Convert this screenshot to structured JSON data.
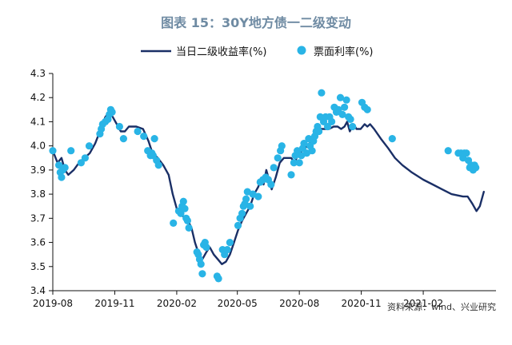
{
  "chart_data": {
    "type": "line",
    "title": "图表 15：30Y地方债一二级变动",
    "source": "资料来源：wind、兴业研究",
    "xlabel": "",
    "ylabel": "",
    "ylim": [
      3.4,
      4.3
    ],
    "yticks": [
      "3.4",
      "3.5",
      "3.6",
      "3.7",
      "3.8",
      "3.9",
      "4.0",
      "4.1",
      "4.2",
      "4.3"
    ],
    "xlim": [
      "2019-08-01",
      "2021-05-20"
    ],
    "xticks": [
      {
        "date": "2019-08-01",
        "label": "2019-08"
      },
      {
        "date": "2019-11-01",
        "label": "2019-11"
      },
      {
        "date": "2020-02-01",
        "label": "2020-02"
      },
      {
        "date": "2020-05-01",
        "label": "2020-05"
      },
      {
        "date": "2020-08-01",
        "label": "2020-08"
      },
      {
        "date": "2020-11-01",
        "label": "2020-11"
      },
      {
        "date": "2021-02-01",
        "label": "2021-02"
      }
    ],
    "grid": false,
    "legend_position": "top",
    "series": [
      {
        "name": "当日二级收益率(%)",
        "kind": "line",
        "color": "#1a2f66",
        "points": [
          [
            "2019-08-01",
            3.98
          ],
          [
            "2019-08-08",
            3.93
          ],
          [
            "2019-08-14",
            3.95
          ],
          [
            "2019-08-19",
            3.9
          ],
          [
            "2019-08-24",
            3.88
          ],
          [
            "2019-09-01",
            3.9
          ],
          [
            "2019-09-09",
            3.93
          ],
          [
            "2019-09-17",
            3.95
          ],
          [
            "2019-09-25",
            3.97
          ],
          [
            "2019-10-03",
            4.01
          ],
          [
            "2019-10-10",
            4.06
          ],
          [
            "2019-10-18",
            4.12
          ],
          [
            "2019-10-24",
            4.14
          ],
          [
            "2019-10-29",
            4.12
          ],
          [
            "2019-11-04",
            4.09
          ],
          [
            "2019-11-10",
            4.06
          ],
          [
            "2019-11-16",
            4.06
          ],
          [
            "2019-11-22",
            4.08
          ],
          [
            "2019-12-03",
            4.08
          ],
          [
            "2019-12-13",
            4.07
          ],
          [
            "2019-12-21",
            4.02
          ],
          [
            "2019-12-27",
            3.97
          ],
          [
            "2020-01-04",
            3.95
          ],
          [
            "2020-01-12",
            3.92
          ],
          [
            "2020-01-20",
            3.88
          ],
          [
            "2020-01-26",
            3.8
          ],
          [
            "2020-02-02",
            3.73
          ],
          [
            "2020-02-09",
            3.71
          ],
          [
            "2020-02-16",
            3.7
          ],
          [
            "2020-02-23",
            3.66
          ],
          [
            "2020-02-28",
            3.6
          ],
          [
            "2020-03-05",
            3.55
          ],
          [
            "2020-03-10",
            3.53
          ],
          [
            "2020-03-16",
            3.56
          ],
          [
            "2020-03-21",
            3.58
          ],
          [
            "2020-03-27",
            3.55
          ],
          [
            "2020-04-02",
            3.53
          ],
          [
            "2020-04-08",
            3.51
          ],
          [
            "2020-04-14",
            3.52
          ],
          [
            "2020-04-20",
            3.55
          ],
          [
            "2020-04-26",
            3.6
          ],
          [
            "2020-05-02",
            3.65
          ],
          [
            "2020-05-08",
            3.69
          ],
          [
            "2020-05-14",
            3.72
          ],
          [
            "2020-05-20",
            3.75
          ],
          [
            "2020-05-26",
            3.8
          ],
          [
            "2020-06-01",
            3.83
          ],
          [
            "2020-06-05",
            3.86
          ],
          [
            "2020-06-09",
            3.84
          ],
          [
            "2020-06-13",
            3.9
          ],
          [
            "2020-06-17",
            3.86
          ],
          [
            "2020-06-21",
            3.82
          ],
          [
            "2020-06-27",
            3.87
          ],
          [
            "2020-07-03",
            3.93
          ],
          [
            "2020-07-09",
            3.95
          ],
          [
            "2020-07-15",
            3.95
          ],
          [
            "2020-07-20",
            3.95
          ],
          [
            "2020-07-25",
            3.93
          ],
          [
            "2020-07-31",
            3.97
          ],
          [
            "2020-08-06",
            3.98
          ],
          [
            "2020-08-13",
            4.0
          ],
          [
            "2020-08-19",
            4.02
          ],
          [
            "2020-08-25",
            4.05
          ],
          [
            "2020-08-31",
            4.07
          ],
          [
            "2020-09-07",
            4.07
          ],
          [
            "2020-09-14",
            4.07
          ],
          [
            "2020-09-21",
            4.08
          ],
          [
            "2020-09-27",
            4.08
          ],
          [
            "2020-10-02",
            4.07
          ],
          [
            "2020-10-07",
            4.08
          ],
          [
            "2020-10-11",
            4.1
          ],
          [
            "2020-10-15",
            4.06
          ],
          [
            "2020-10-20",
            4.09
          ],
          [
            "2020-10-25",
            4.07
          ],
          [
            "2020-10-31",
            4.07
          ],
          [
            "2020-11-06",
            4.09
          ],
          [
            "2020-11-10",
            4.08
          ],
          [
            "2020-11-14",
            4.09
          ],
          [
            "2020-11-20",
            4.07
          ],
          [
            "2020-11-30",
            4.03
          ],
          [
            "2020-12-11",
            3.99
          ],
          [
            "2020-12-21",
            3.95
          ],
          [
            "2021-01-01",
            3.92
          ],
          [
            "2021-01-15",
            3.89
          ],
          [
            "2021-02-01",
            3.86
          ],
          [
            "2021-02-15",
            3.84
          ],
          [
            "2021-03-01",
            3.82
          ],
          [
            "2021-03-15",
            3.8
          ],
          [
            "2021-04-01",
            3.79
          ],
          [
            "2021-04-08",
            3.79
          ],
          [
            "2021-04-15",
            3.76
          ],
          [
            "2021-04-21",
            3.73
          ],
          [
            "2021-04-26",
            3.75
          ],
          [
            "2021-05-02",
            3.81
          ]
        ]
      },
      {
        "name": "票面利率(%)",
        "kind": "scatter",
        "color": "#29b4e6",
        "points": [
          [
            "2019-08-01",
            3.98
          ],
          [
            "2019-08-10",
            3.92
          ],
          [
            "2019-08-12",
            3.89
          ],
          [
            "2019-08-14",
            3.87
          ],
          [
            "2019-08-16",
            3.9
          ],
          [
            "2019-08-19",
            3.91
          ],
          [
            "2019-08-28",
            3.98
          ],
          [
            "2019-09-12",
            3.93
          ],
          [
            "2019-09-18",
            3.95
          ],
          [
            "2019-09-24",
            4.0
          ],
          [
            "2019-10-10",
            4.05
          ],
          [
            "2019-10-12",
            4.07
          ],
          [
            "2019-10-14",
            4.09
          ],
          [
            "2019-10-18",
            4.1
          ],
          [
            "2019-10-22",
            4.11
          ],
          [
            "2019-10-24",
            4.13
          ],
          [
            "2019-10-26",
            4.15
          ],
          [
            "2019-10-28",
            4.14
          ],
          [
            "2019-11-08",
            4.08
          ],
          [
            "2019-11-14",
            4.03
          ],
          [
            "2019-12-05",
            4.06
          ],
          [
            "2019-12-14",
            4.04
          ],
          [
            "2019-12-20",
            3.98
          ],
          [
            "2019-12-24",
            3.96
          ],
          [
            "2019-12-26",
            3.97
          ],
          [
            "2019-12-28",
            3.96
          ],
          [
            "2019-12-30",
            4.03
          ],
          [
            "2020-01-02",
            3.94
          ],
          [
            "2020-01-05",
            3.92
          ],
          [
            "2020-01-27",
            3.68
          ],
          [
            "2020-02-04",
            3.73
          ],
          [
            "2020-02-07",
            3.72
          ],
          [
            "2020-02-09",
            3.75
          ],
          [
            "2020-02-11",
            3.77
          ],
          [
            "2020-02-13",
            3.74
          ],
          [
            "2020-02-15",
            3.7
          ],
          [
            "2020-02-17",
            3.69
          ],
          [
            "2020-02-19",
            3.66
          ],
          [
            "2020-03-02",
            3.56
          ],
          [
            "2020-03-04",
            3.55
          ],
          [
            "2020-03-06",
            3.53
          ],
          [
            "2020-03-08",
            3.51
          ],
          [
            "2020-03-10",
            3.47
          ],
          [
            "2020-03-12",
            3.59
          ],
          [
            "2020-03-14",
            3.6
          ],
          [
            "2020-03-16",
            3.58
          ],
          [
            "2020-04-01",
            3.46
          ],
          [
            "2020-04-03",
            3.45
          ],
          [
            "2020-04-09",
            3.57
          ],
          [
            "2020-04-12",
            3.55
          ],
          [
            "2020-04-16",
            3.57
          ],
          [
            "2020-04-20",
            3.6
          ],
          [
            "2020-05-02",
            3.67
          ],
          [
            "2020-05-05",
            3.7
          ],
          [
            "2020-05-08",
            3.72
          ],
          [
            "2020-05-10",
            3.75
          ],
          [
            "2020-05-12",
            3.76
          ],
          [
            "2020-05-14",
            3.78
          ],
          [
            "2020-05-16",
            3.81
          ],
          [
            "2020-05-20",
            3.75
          ],
          [
            "2020-05-24",
            3.8
          ],
          [
            "2020-06-01",
            3.79
          ],
          [
            "2020-06-04",
            3.85
          ],
          [
            "2020-06-08",
            3.86
          ],
          [
            "2020-06-12",
            3.87
          ],
          [
            "2020-06-16",
            3.86
          ],
          [
            "2020-06-20",
            3.84
          ],
          [
            "2020-06-24",
            3.91
          ],
          [
            "2020-06-30",
            3.95
          ],
          [
            "2020-07-04",
            3.98
          ],
          [
            "2020-07-06",
            4.0
          ],
          [
            "2020-07-20",
            3.88
          ],
          [
            "2020-07-24",
            3.93
          ],
          [
            "2020-07-26",
            3.96
          ],
          [
            "2020-07-29",
            3.98
          ],
          [
            "2020-08-01",
            3.93
          ],
          [
            "2020-08-04",
            3.96
          ],
          [
            "2020-08-06",
            3.99
          ],
          [
            "2020-08-08",
            4.01
          ],
          [
            "2020-08-12",
            3.97
          ],
          [
            "2020-08-15",
            4.03
          ],
          [
            "2020-08-17",
            4.0
          ],
          [
            "2020-08-20",
            3.98
          ],
          [
            "2020-08-22",
            4.02
          ],
          [
            "2020-08-24",
            4.04
          ],
          [
            "2020-08-26",
            4.06
          ],
          [
            "2020-08-28",
            4.08
          ],
          [
            "2020-08-30",
            4.06
          ],
          [
            "2020-09-01",
            4.12
          ],
          [
            "2020-09-03",
            4.22
          ],
          [
            "2020-09-06",
            4.1
          ],
          [
            "2020-09-09",
            4.12
          ],
          [
            "2020-09-12",
            4.08
          ],
          [
            "2020-09-15",
            4.12
          ],
          [
            "2020-09-18",
            4.1
          ],
          [
            "2020-09-22",
            4.16
          ],
          [
            "2020-09-25",
            4.14
          ],
          [
            "2020-09-28",
            4.15
          ],
          [
            "2020-10-01",
            4.2
          ],
          [
            "2020-10-04",
            4.13
          ],
          [
            "2020-10-07",
            4.16
          ],
          [
            "2020-10-10",
            4.19
          ],
          [
            "2020-10-13",
            4.12
          ],
          [
            "2020-10-16",
            4.11
          ],
          [
            "2020-10-19",
            4.08
          ],
          [
            "2020-11-02",
            4.18
          ],
          [
            "2020-11-06",
            4.16
          ],
          [
            "2020-11-10",
            4.15
          ],
          [
            "2020-12-17",
            4.03
          ],
          [
            "2021-03-10",
            3.98
          ],
          [
            "2021-03-25",
            3.97
          ],
          [
            "2021-03-29",
            3.97
          ],
          [
            "2021-04-01",
            3.95
          ],
          [
            "2021-04-03",
            3.97
          ],
          [
            "2021-04-06",
            3.97
          ],
          [
            "2021-04-09",
            3.94
          ],
          [
            "2021-04-11",
            3.91
          ],
          [
            "2021-04-13",
            3.92
          ],
          [
            "2021-04-16",
            3.9
          ],
          [
            "2021-04-18",
            3.92
          ],
          [
            "2021-04-20",
            3.91
          ]
        ]
      }
    ]
  }
}
